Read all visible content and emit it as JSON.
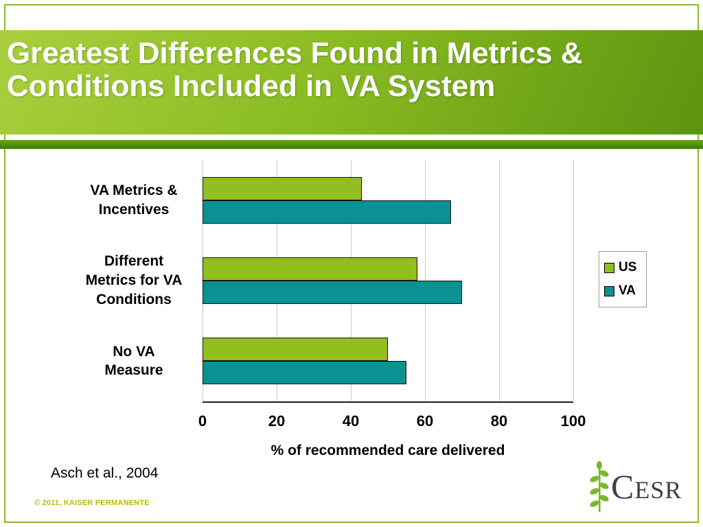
{
  "slide": {
    "title": "Greatest Differences Found in Metrics &\nConditions Included in VA System",
    "source": "Asch et al., 2004",
    "copyright": "© 2011, KAISER PERMANENTE",
    "logo_text": "CESR"
  },
  "chart_data": {
    "type": "bar",
    "orientation": "horizontal",
    "categories": [
      "VA Metrics &\nIncentives",
      "Different\nMetrics for VA\nConditions",
      "No VA\nMeasure"
    ],
    "series": [
      {
        "name": "US",
        "color": "#92bf1f",
        "values": [
          43,
          58,
          50
        ]
      },
      {
        "name": "VA",
        "color": "#0a9191",
        "values": [
          67,
          70,
          55
        ]
      }
    ],
    "xlabel": "% of recommended care delivered",
    "xlim": [
      0,
      100
    ],
    "xticks": [
      0,
      20,
      40,
      60,
      80,
      100
    ],
    "grid": true,
    "legend_position": "right"
  }
}
